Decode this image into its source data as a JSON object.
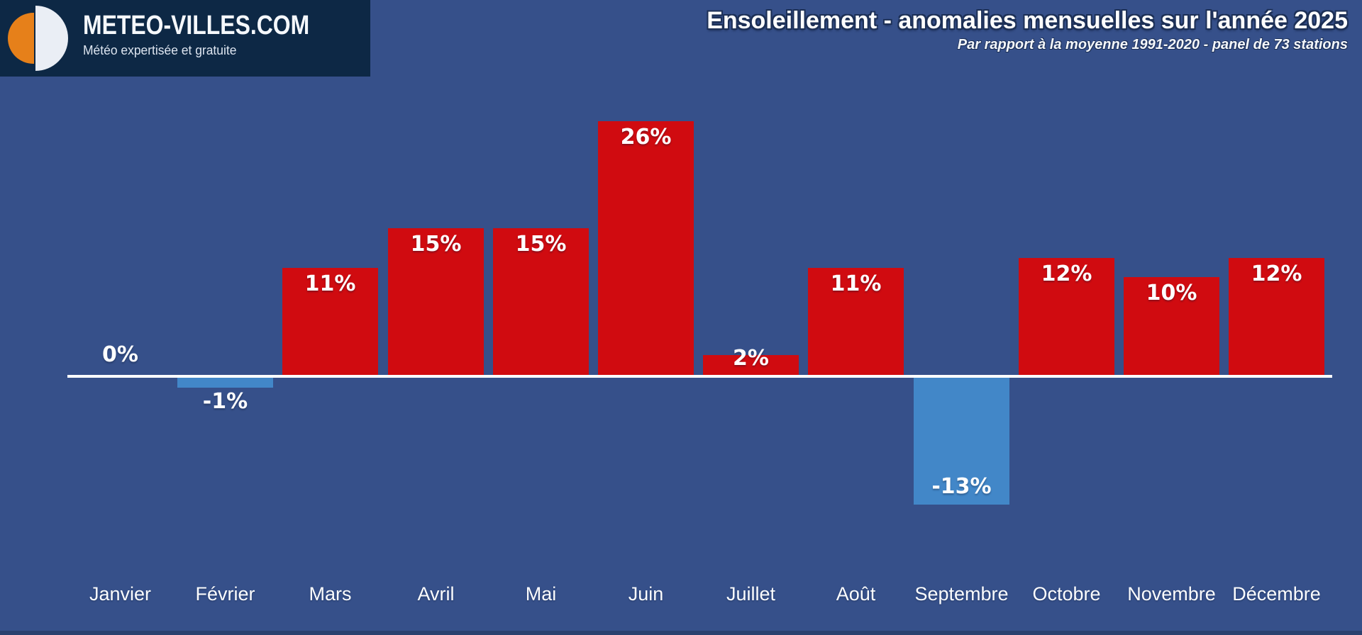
{
  "brand": {
    "name": "METEO-VILLES.COM",
    "tagline": "Météo expertisée et gratuite"
  },
  "chart_data": {
    "type": "bar",
    "title": "Ensoleillement - anomalies mensuelles sur l'année 2025",
    "subtitle": "Par rapport à la moyenne 1991-2020 - panel de 73 stations",
    "unit": "%",
    "categories": [
      "Janvier",
      "Février",
      "Mars",
      "Avril",
      "Mai",
      "Juin",
      "Juillet",
      "Août",
      "Septembre",
      "Octobre",
      "Novembre",
      "Décembre"
    ],
    "values": [
      0,
      -1,
      11,
      15,
      15,
      26,
      2,
      11,
      -13,
      12,
      10,
      12
    ],
    "labels": [
      "0%",
      "-1%",
      "11%",
      "15%",
      "15%",
      "26%",
      "2%",
      "11%",
      "-13%",
      "12%",
      "10%",
      "12%"
    ],
    "baseline_value": 0,
    "ylim": [
      -16,
      29
    ],
    "grid": false,
    "legend": null,
    "bar_colors": {
      "positive": "#D00B10",
      "negative": "#4287C8"
    },
    "axis_color": "#FFFFFF"
  },
  "colors": {
    "background": "#36508A",
    "header_navy": "#0D2845",
    "logo_orange": "#E6801A",
    "logo_white": "#EAEEF5",
    "footer_strip": "#2A406E"
  }
}
